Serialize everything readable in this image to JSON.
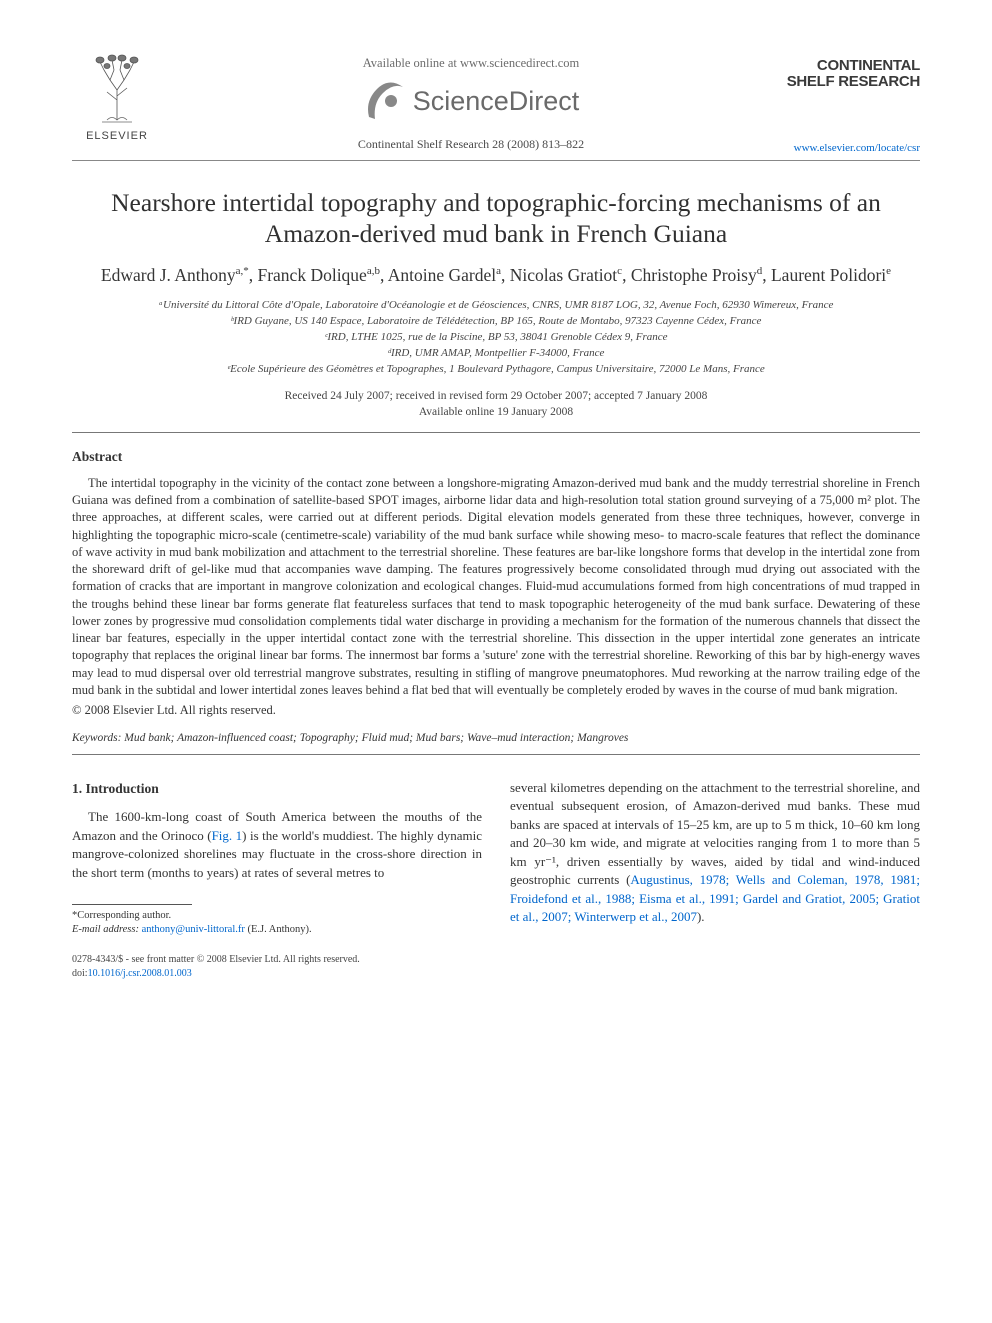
{
  "header": {
    "publisher_label": "ELSEVIER",
    "available_text": "Available online at www.sciencedirect.com",
    "sciencedirect_text": "ScienceDirect",
    "journal_ref": "Continental Shelf Research 28 (2008) 813–822",
    "journal_title_line1": "CONTINENTAL",
    "journal_title_line2": "SHELF RESEARCH",
    "journal_link": "www.elsevier.com/locate/csr"
  },
  "title": "Nearshore intertidal topography and topographic-forcing mechanisms of an Amazon-derived mud bank in French Guiana",
  "authors_html": "Edward J. Anthony<sup>a,*</sup>, Franck Dolique<sup>a,b</sup>, Antoine Gardel<sup>a</sup>, Nicolas Gratiot<sup>c</sup>, Christophe Proisy<sup>d</sup>, Laurent Polidori<sup>e</sup>",
  "affiliations": [
    "ᵃUniversité du Littoral Côte d'Opale, Laboratoire d'Océanologie et de Géosciences, CNRS, UMR 8187 LOG, 32, Avenue Foch, 62930 Wimereux, France",
    "ᵇIRD Guyane, US 140 Espace, Laboratoire de Télédétection, BP 165, Route de Montabo, 97323 Cayenne Cédex, France",
    "ᶜIRD, LTHE 1025, rue de la Piscine, BP 53, 38041 Grenoble Cédex 9, France",
    "ᵈIRD, UMR AMAP, Montpellier F-34000, France",
    "ᵉEcole Supérieure des Géomètres et Topographes, 1 Boulevard Pythagore, Campus Universitaire, 72000 Le Mans, France"
  ],
  "dates": {
    "received": "Received 24 July 2007; received in revised form 29 October 2007; accepted 7 January 2008",
    "online": "Available online 19 January 2008"
  },
  "abstract": {
    "heading": "Abstract",
    "body": "The intertidal topography in the vicinity of the contact zone between a longshore-migrating Amazon-derived mud bank and the muddy terrestrial shoreline in French Guiana was defined from a combination of satellite-based SPOT images, airborne lidar data and high-resolution total station ground surveying of a 75,000 m² plot. The three approaches, at different scales, were carried out at different periods. Digital elevation models generated from these three techniques, however, converge in highlighting the topographic micro-scale (centimetre-scale) variability of the mud bank surface while showing meso- to macro-scale features that reflect the dominance of wave activity in mud bank mobilization and attachment to the terrestrial shoreline. These features are bar-like longshore forms that develop in the intertidal zone from the shoreward drift of gel-like mud that accompanies wave damping. The features progressively become consolidated through mud drying out associated with the formation of cracks that are important in mangrove colonization and ecological changes. Fluid-mud accumulations formed from high concentrations of mud trapped in the troughs behind these linear bar forms generate flat featureless surfaces that tend to mask topographic heterogeneity of the mud bank surface. Dewatering of these lower zones by progressive mud consolidation complements tidal water discharge in providing a mechanism for the formation of the numerous channels that dissect the linear bar features, especially in the upper intertidal contact zone with the terrestrial shoreline. This dissection in the upper intertidal zone generates an intricate topography that replaces the original linear bar forms. The innermost bar forms a 'suture' zone with the terrestrial shoreline. Reworking of this bar by high-energy waves may lead to mud dispersal over old terrestrial mangrove substrates, resulting in stifling of mangrove pneumatophores. Mud reworking at the narrow trailing edge of the mud bank in the subtidal and lower intertidal zones leaves behind a flat bed that will eventually be completely eroded by waves in the course of mud bank migration.",
    "copyright": "© 2008 Elsevier Ltd. All rights reserved."
  },
  "keywords": {
    "label": "Keywords:",
    "list": "Mud bank; Amazon-influenced coast; Topography; Fluid mud; Mud bars; Wave–mud interaction; Mangroves"
  },
  "section1": {
    "heading": "1. Introduction",
    "col1": "The 1600-km-long coast of South America between the mouths of the Amazon and the Orinoco (Fig. 1) is the world's muddiest. The highly dynamic mangrove-colonized shorelines may fluctuate in the cross-shore direction in the short term (months to years) at rates of several metres to",
    "col2_part1": "several kilometres depending on the attachment to the terrestrial shoreline, and eventual subsequent erosion, of Amazon-derived mud banks. These mud banks are spaced at intervals of 15–25 km, are up to 5 m thick, 10–60 km long and 20–30 km wide, and migrate at velocities ranging from 1 to more than 5 km yr⁻¹, driven essentially by waves, aided by tidal and wind-induced geostrophic currents (",
    "col2_refs": "Augustinus, 1978; Wells and Coleman, 1978, 1981; Froidefond et al., 1988; Eisma et al., 1991; Gardel and Gratiot, 2005; Gratiot et al., 2007; Winterwerp et al., 2007",
    "col2_part2": ")."
  },
  "footnotes": {
    "corresponding": "*Corresponding author.",
    "email_label": "E-mail address:",
    "email": "anthony@univ-littoral.fr",
    "email_suffix": "(E.J. Anthony)."
  },
  "doi": {
    "line1": "0278-4343/$ - see front matter © 2008 Elsevier Ltd. All rights reserved.",
    "line2_label": "doi:",
    "line2_link": "10.1016/j.csr.2008.01.003"
  },
  "colors": {
    "text": "#343434",
    "link": "#0066cc",
    "rule": "#777777",
    "background": "#ffffff"
  }
}
